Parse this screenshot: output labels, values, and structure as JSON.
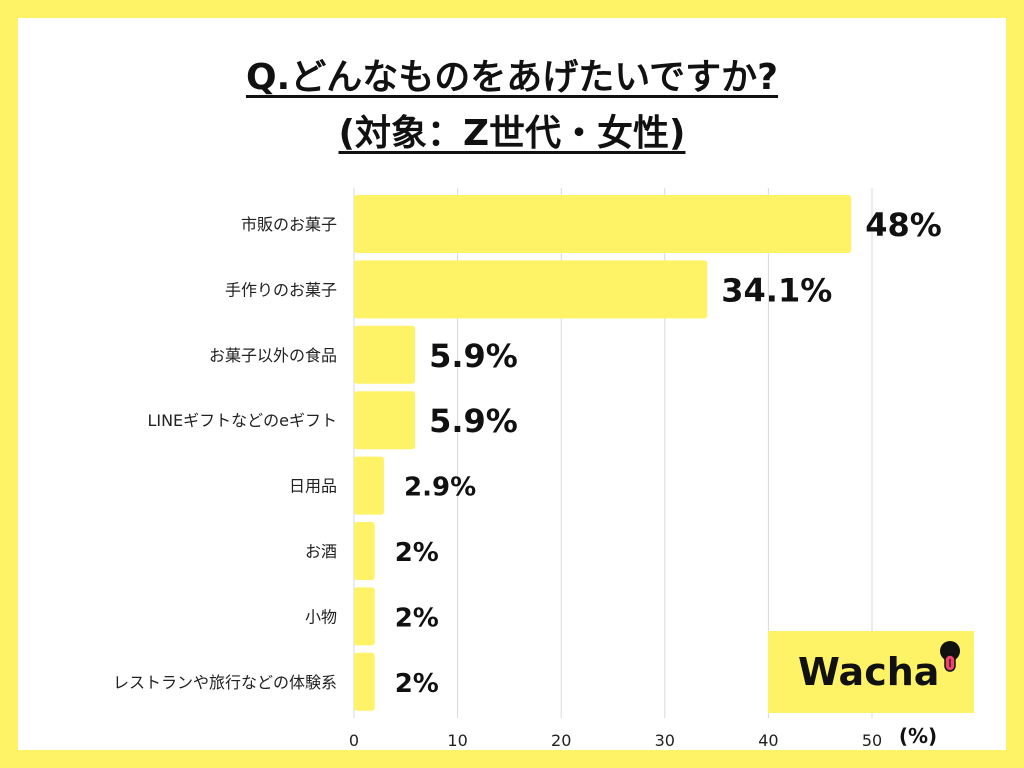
{
  "title_line1": "Q.どんなものをあげたいですか?",
  "title_line2": "(対象：Z世代・女性)",
  "logo_text": "Wacha",
  "colors": {
    "border": "#fef366",
    "bar": "#fef366",
    "grid": "#d9d9d9",
    "logo_mark": "#111111",
    "logo_tongue": "#e9456f"
  },
  "chart_data": {
    "type": "bar",
    "orientation": "horizontal",
    "categories": [
      "市販のお菓子",
      "手作りのお菓子",
      "お菓子以外の食品",
      "LINEギフトなどのeギフト",
      "日用品",
      "お酒",
      "小物",
      "レストランや旅行などの体験系"
    ],
    "values": [
      48,
      34.1,
      5.9,
      5.9,
      2.9,
      2,
      2,
      2
    ],
    "value_labels": [
      "48%",
      "34.1%",
      "5.9%",
      "5.9%",
      "2.9%",
      "2%",
      "2%",
      "2%"
    ],
    "xlim": [
      0,
      50
    ],
    "xticks": [
      0,
      10,
      20,
      30,
      40,
      50
    ],
    "xlabel": "(%)",
    "grid": true
  }
}
